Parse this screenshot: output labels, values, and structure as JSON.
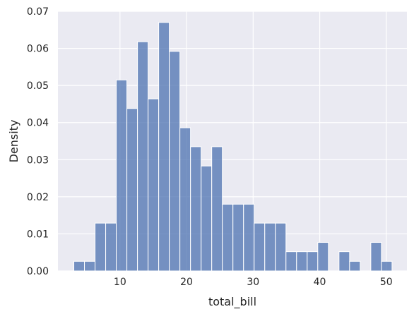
{
  "chart_data": {
    "type": "bar",
    "xlabel": "total_bill",
    "ylabel": "Density",
    "xlim": [
      0.68,
      53.1
    ],
    "ylim": [
      0,
      0.07
    ],
    "xticks": [
      10,
      20,
      30,
      40,
      50
    ],
    "yticks": [
      0.0,
      0.01,
      0.02,
      0.03,
      0.04,
      0.05,
      0.06,
      0.07
    ],
    "ytick_labels": [
      "0.00",
      "0.01",
      "0.02",
      "0.03",
      "0.04",
      "0.05",
      "0.06",
      "0.07"
    ],
    "grid": true,
    "bin_start": 3.07,
    "bin_width": 1.593,
    "values": [
      0.0026,
      0.0026,
      0.0129,
      0.0129,
      0.0515,
      0.0438,
      0.0618,
      0.0464,
      0.067,
      0.0592,
      0.0386,
      0.0335,
      0.0283,
      0.0335,
      0.018,
      0.018,
      0.018,
      0.0129,
      0.0129,
      0.0129,
      0.0052,
      0.0052,
      0.0052,
      0.0077,
      0.0,
      0.0052,
      0.0026,
      0.0,
      0.0077,
      0.0026
    ],
    "colors": {
      "bar": "#4c72b0",
      "bar_edge": "#ffffff",
      "background": "#eaeaf2",
      "grid": "#ffffff"
    }
  }
}
